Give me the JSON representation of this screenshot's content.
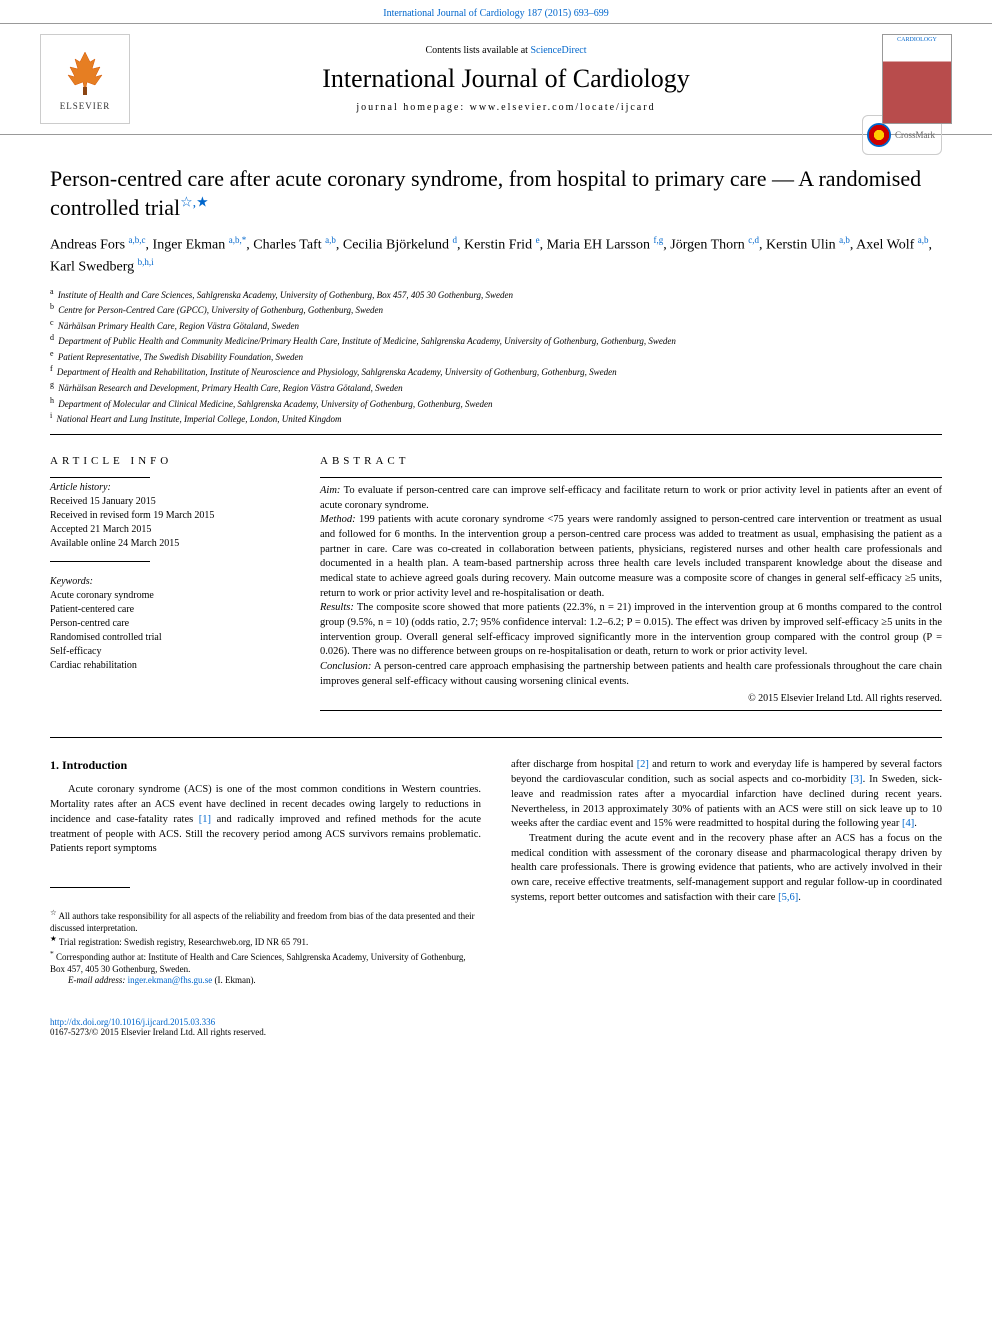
{
  "header": {
    "top_link_prefix": "",
    "top_link": "International Journal of Cardiology 187 (2015) 693–699",
    "contents_prefix": "Contents lists available at ",
    "contents_link": "ScienceDirect",
    "journal_name": "International Journal of Cardiology",
    "homepage_prefix": "journal homepage: ",
    "homepage_url": "www.elsevier.com/locate/ijcard",
    "elsevier_label": "ELSEVIER",
    "cover_label": "CARDIOLOGY",
    "crossmark_label": "CrossMark"
  },
  "article": {
    "title": "Person-centred care after acute coronary syndrome, from hospital to primary care — A randomised controlled trial",
    "title_marks": "☆,★",
    "authors_html": "Andreas Fors <sup>a,b,c</sup>, Inger Ekman <sup>a,b,</sup><sup class=\"corresponding\">*</sup>, Charles Taft <sup>a,b</sup>, Cecilia Björkelund <sup>d</sup>, Kerstin Frid <sup>e</sup>, Maria EH Larsson <sup>f,g</sup>, Jörgen Thorn <sup>c,d</sup>, Kerstin Ulin <sup>a,b</sup>, Axel Wolf <sup>a,b</sup>, Karl Swedberg <sup>b,h,i</sup>",
    "affiliations": [
      {
        "mark": "a",
        "text": "Institute of Health and Care Sciences, Sahlgrenska Academy, University of Gothenburg, Box 457, 405 30 Gothenburg, Sweden"
      },
      {
        "mark": "b",
        "text": "Centre for Person-Centred Care (GPCC), University of Gothenburg, Gothenburg, Sweden"
      },
      {
        "mark": "c",
        "text": "Närhälsan Primary Health Care, Region Västra Götaland, Sweden"
      },
      {
        "mark": "d",
        "text": "Department of Public Health and Community Medicine/Primary Health Care, Institute of Medicine, Sahlgrenska Academy, University of Gothenburg, Gothenburg, Sweden"
      },
      {
        "mark": "e",
        "text": "Patient Representative, The Swedish Disability Foundation, Sweden"
      },
      {
        "mark": "f",
        "text": "Department of Health and Rehabilitation, Institute of Neuroscience and Physiology, Sahlgrenska Academy, University of Gothenburg, Gothenburg, Sweden"
      },
      {
        "mark": "g",
        "text": "Närhälsan Research and Development, Primary Health Care, Region Västra Götaland, Sweden"
      },
      {
        "mark": "h",
        "text": "Department of Molecular and Clinical Medicine, Sahlgrenska Academy, University of Gothenburg, Gothenburg, Sweden"
      },
      {
        "mark": "i",
        "text": "National Heart and Lung Institute, Imperial College, London, United Kingdom"
      }
    ]
  },
  "info": {
    "section_label": "ARTICLE INFO",
    "history_label": "Article history:",
    "history": [
      "Received 15 January 2015",
      "Received in revised form 19 March 2015",
      "Accepted 21 March 2015",
      "Available online 24 March 2015"
    ],
    "keywords_label": "Keywords:",
    "keywords": [
      "Acute coronary syndrome",
      "Patient-centered care",
      "Person-centred care",
      "Randomised controlled trial",
      "Self-efficacy",
      "Cardiac rehabilitation"
    ]
  },
  "abstract": {
    "section_label": "ABSTRACT",
    "aim_label": "Aim:",
    "aim": " To evaluate if person-centred care can improve self-efficacy and facilitate return to work or prior activity level in patients after an event of acute coronary syndrome.",
    "method_label": "Method:",
    "method": " 199 patients with acute coronary syndrome <75 years were randomly assigned to person-centred care intervention or treatment as usual and followed for 6 months. In the intervention group a person-centred care process was added to treatment as usual, emphasising the patient as a partner in care. Care was co-created in collaboration between patients, physicians, registered nurses and other health care professionals and documented in a health plan. A team-based partnership across three health care levels included transparent knowledge about the disease and medical state to achieve agreed goals during recovery. Main outcome measure was a composite score of changes in general self-efficacy ≥5 units, return to work or prior activity level and re-hospitalisation or death.",
    "results_label": "Results:",
    "results": " The composite score showed that more patients (22.3%, n = 21) improved in the intervention group at 6 months compared to the control group (9.5%, n = 10) (odds ratio, 2.7; 95% confidence interval: 1.2–6.2; P = 0.015). The effect was driven by improved self-efficacy ≥5 units in the intervention group. Overall general self-efficacy improved significantly more in the intervention group compared with the control group (P = 0.026). There was no difference between groups on re-hospitalisation or death, return to work or prior activity level.",
    "conclusion_label": "Conclusion:",
    "conclusion": " A person-centred care approach emphasising the partnership between patients and health care professionals throughout the care chain improves general self-efficacy without causing worsening clinical events.",
    "copyright": "© 2015 Elsevier Ireland Ltd. All rights reserved."
  },
  "body": {
    "intro_heading": "1. Introduction",
    "intro_p1": "Acute coronary syndrome (ACS) is one of the most common conditions in Western countries. Mortality rates after an ACS event have declined in recent decades owing largely to reductions in incidence and case-fatality rates [1] and radically improved and refined methods for the acute treatment of people with ACS. Still the recovery period among ACS survivors remains problematic. Patients report symptoms",
    "col2_p1": "after discharge from hospital [2] and return to work and everyday life is hampered by several factors beyond the cardiovascular condition, such as social aspects and co-morbidity [3]. In Sweden, sick-leave and readmission rates after a myocardial infarction have declined during recent years. Nevertheless, in 2013 approximately 30% of patients with an ACS were still on sick leave up to 10 weeks after the cardiac event and 15% were readmitted to hospital during the following year [4].",
    "col2_p2": "Treatment during the acute event and in the recovery phase after an ACS has a focus on the medical condition with assessment of the coronary disease and pharmacological therapy driven by health care professionals. There is growing evidence that patients, who are actively involved in their own care, receive effective treatments, self-management support and regular follow-up in coordinated systems, report better outcomes and satisfaction with their care [5,6]."
  },
  "footnotes": {
    "note1_mark": "☆",
    "note1": " All authors take responsibility for all aspects of the reliability and freedom from bias of the data presented and their discussed interpretation.",
    "note2_mark": "★",
    "note2": " Trial registration: Swedish registry, Researchweb.org, ID NR 65 791.",
    "corr_mark": "*",
    "corr": " Corresponding author at: Institute of Health and Care Sciences, Sahlgrenska Academy, University of Gothenburg, Box 457, 405 30 Gothenburg, Sweden.",
    "email_label": "E-mail address: ",
    "email": "inger.ekman@fhs.gu.se",
    "email_suffix": " (I. Ekman)."
  },
  "footer": {
    "doi": "http://dx.doi.org/10.1016/j.ijcard.2015.03.336",
    "issn_copyright": "0167-5273/© 2015 Elsevier Ireland Ltd. All rights reserved."
  },
  "colors": {
    "link": "#0066cc",
    "text": "#000000",
    "border": "#999999"
  }
}
